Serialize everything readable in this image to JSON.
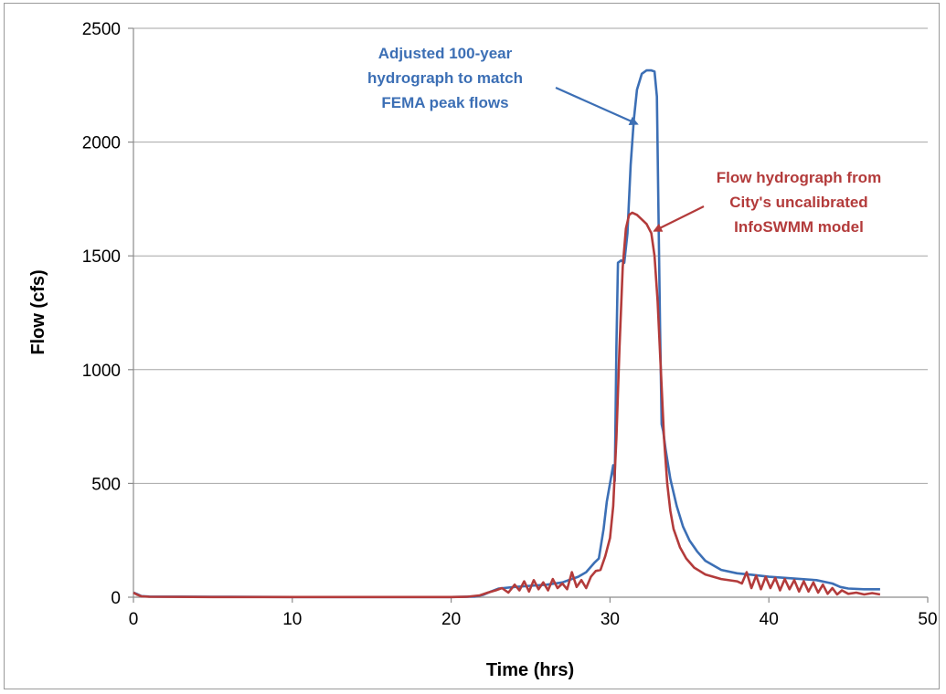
{
  "chart_data": {
    "type": "line",
    "xlabel": "Time (hrs)",
    "ylabel": "Flow (cfs)",
    "xlim": [
      0,
      50
    ],
    "ylim": [
      0,
      2500
    ],
    "xticks": [
      0,
      10,
      20,
      30,
      40,
      50
    ],
    "yticks": [
      0,
      500,
      1000,
      1500,
      2000,
      2500
    ],
    "grid": "horizontal",
    "legend": "none",
    "series": [
      {
        "color": "#3c6fb5",
        "points": [
          [
            0,
            20
          ],
          [
            0.2,
            15
          ],
          [
            0.5,
            5
          ],
          [
            1,
            3
          ],
          [
            5,
            2
          ],
          [
            10,
            1
          ],
          [
            15,
            1
          ],
          [
            20,
            1
          ],
          [
            21.5,
            3
          ],
          [
            22,
            10
          ],
          [
            22.5,
            25
          ],
          [
            23,
            38
          ],
          [
            24,
            45
          ],
          [
            25,
            50
          ],
          [
            26,
            55
          ],
          [
            27,
            65
          ],
          [
            28,
            90
          ],
          [
            28.5,
            110
          ],
          [
            29,
            150
          ],
          [
            29.3,
            170
          ],
          [
            29.6,
            300
          ],
          [
            29.8,
            420
          ],
          [
            30,
            500
          ],
          [
            30.2,
            580
          ],
          [
            30.3,
            510
          ],
          [
            30.4,
            1100
          ],
          [
            30.5,
            1470
          ],
          [
            30.7,
            1480
          ],
          [
            30.9,
            1470
          ],
          [
            31.1,
            1600
          ],
          [
            31.3,
            1900
          ],
          [
            31.5,
            2100
          ],
          [
            31.7,
            2230
          ],
          [
            32,
            2300
          ],
          [
            32.3,
            2315
          ],
          [
            32.6,
            2315
          ],
          [
            32.8,
            2310
          ],
          [
            32.95,
            2200
          ],
          [
            33.05,
            1700
          ],
          [
            33.15,
            1200
          ],
          [
            33.25,
            760
          ],
          [
            33.35,
            730
          ],
          [
            33.5,
            650
          ],
          [
            33.8,
            520
          ],
          [
            34.2,
            400
          ],
          [
            34.6,
            310
          ],
          [
            35,
            250
          ],
          [
            35.5,
            200
          ],
          [
            36,
            160
          ],
          [
            37,
            120
          ],
          [
            38,
            105
          ],
          [
            39,
            98
          ],
          [
            40,
            90
          ],
          [
            41,
            85
          ],
          [
            42,
            80
          ],
          [
            43,
            75
          ],
          [
            44,
            60
          ],
          [
            44.5,
            45
          ],
          [
            45,
            38
          ],
          [
            46,
            35
          ],
          [
            47,
            35
          ]
        ]
      },
      {
        "color": "#b33b3b",
        "points": [
          [
            0,
            20
          ],
          [
            0.2,
            12
          ],
          [
            0.5,
            4
          ],
          [
            1,
            2
          ],
          [
            5,
            1
          ],
          [
            10,
            1
          ],
          [
            15,
            1
          ],
          [
            20,
            1
          ],
          [
            21,
            2
          ],
          [
            21.8,
            8
          ],
          [
            22.3,
            20
          ],
          [
            22.8,
            30
          ],
          [
            23.2,
            40
          ],
          [
            23.6,
            20
          ],
          [
            24,
            55
          ],
          [
            24.3,
            30
          ],
          [
            24.6,
            70
          ],
          [
            24.9,
            25
          ],
          [
            25.2,
            75
          ],
          [
            25.5,
            35
          ],
          [
            25.8,
            65
          ],
          [
            26.1,
            30
          ],
          [
            26.4,
            80
          ],
          [
            26.7,
            40
          ],
          [
            27,
            60
          ],
          [
            27.3,
            35
          ],
          [
            27.6,
            110
          ],
          [
            27.9,
            45
          ],
          [
            28.2,
            75
          ],
          [
            28.5,
            40
          ],
          [
            28.8,
            90
          ],
          [
            29.1,
            115
          ],
          [
            29.4,
            120
          ],
          [
            29.7,
            180
          ],
          [
            30,
            260
          ],
          [
            30.2,
            400
          ],
          [
            30.4,
            700
          ],
          [
            30.6,
            1100
          ],
          [
            30.8,
            1450
          ],
          [
            31,
            1620
          ],
          [
            31.2,
            1680
          ],
          [
            31.4,
            1690
          ],
          [
            31.7,
            1680
          ],
          [
            32,
            1660
          ],
          [
            32.3,
            1640
          ],
          [
            32.6,
            1600
          ],
          [
            32.8,
            1500
          ],
          [
            33,
            1300
          ],
          [
            33.2,
            1000
          ],
          [
            33.4,
            700
          ],
          [
            33.6,
            500
          ],
          [
            33.8,
            380
          ],
          [
            34,
            300
          ],
          [
            34.4,
            220
          ],
          [
            34.8,
            170
          ],
          [
            35.3,
            130
          ],
          [
            36,
            100
          ],
          [
            37,
            80
          ],
          [
            38,
            70
          ],
          [
            38.3,
            60
          ],
          [
            38.6,
            110
          ],
          [
            38.9,
            40
          ],
          [
            39.2,
            95
          ],
          [
            39.5,
            35
          ],
          [
            39.8,
            90
          ],
          [
            40.1,
            40
          ],
          [
            40.4,
            85
          ],
          [
            40.7,
            30
          ],
          [
            41,
            80
          ],
          [
            41.3,
            35
          ],
          [
            41.6,
            75
          ],
          [
            41.9,
            25
          ],
          [
            42.2,
            70
          ],
          [
            42.5,
            25
          ],
          [
            42.8,
            65
          ],
          [
            43.1,
            20
          ],
          [
            43.4,
            55
          ],
          [
            43.7,
            15
          ],
          [
            44,
            40
          ],
          [
            44.3,
            12
          ],
          [
            44.6,
            30
          ],
          [
            45,
            15
          ],
          [
            45.5,
            20
          ],
          [
            46,
            12
          ],
          [
            46.5,
            18
          ],
          [
            47,
            12
          ]
        ]
      }
    ],
    "annotations": [
      {
        "lines": [
          "Adjusted 100-year",
          "hydrograph to match",
          "FEMA peak flows"
        ],
        "color": "#3c6fb5",
        "arrow_to": [
          31.7,
          2080
        ]
      },
      {
        "lines": [
          "Flow hydrograph from",
          "City's uncalibrated",
          "InfoSWMM model"
        ],
        "color": "#b33b3b",
        "arrow_to": [
          32.8,
          1610
        ]
      }
    ]
  }
}
